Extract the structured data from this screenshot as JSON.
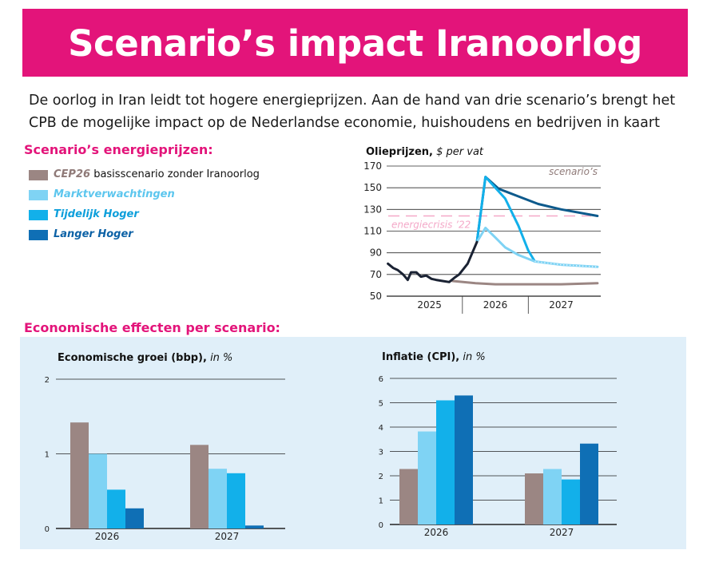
{
  "header": {
    "title": "Scenario’s impact Iranoorlog"
  },
  "intro": {
    "text": "De oorlog in Iran leidt tot hogere energieprijzen. Aan de hand van drie scenario’s brengt het CPB de mogelijke impact op de Nederlandse economie, huishoudens en bedrijven in kaart"
  },
  "legend": {
    "title": "Scenario’s energieprijzen:",
    "items": [
      {
        "name": "CEP26",
        "desc": "basisscenario zonder Iranoorlog",
        "color": "#9b8683",
        "name_color": "#8f7a78"
      },
      {
        "name": "Marktverwachtingen",
        "desc": "",
        "color": "#7fd3f4",
        "name_color": "#5cc6ee"
      },
      {
        "name": "Tijdelijk Hoger",
        "desc": "",
        "color": "#12b0ea",
        "name_color": "#0d9fdb"
      },
      {
        "name": "Langer Hoger",
        "desc": "",
        "color": "#0f6fb5",
        "name_color": "#0d62a6"
      }
    ]
  },
  "effects": {
    "title": "Economische effecten per scenario:"
  },
  "colors": {
    "accent": "#e3147a",
    "panel": "#e0eff9",
    "history": "#1a2233",
    "base": "#9b8683",
    "market": "#7fd3f4",
    "temporary": "#12b0ea",
    "longer": "#0f6fb5",
    "longer_line": "#0d5a8c",
    "crisis": "#f4a8c8"
  },
  "chart_data": [
    {
      "id": "oil",
      "type": "line",
      "title": "Olieprijzen,",
      "unit": "$ per vat",
      "xlabel": "",
      "ylabel": "",
      "ylim": [
        50,
        170
      ],
      "yticks": [
        50,
        70,
        90,
        110,
        130,
        150,
        170
      ],
      "xlim": [
        2024.35,
        2027.6
      ],
      "xticks": [
        {
          "label": "2025",
          "pos": 2025
        },
        {
          "label": "2026",
          "pos": 2026
        },
        {
          "label": "2027",
          "pos": 2027
        }
      ],
      "year_dividers": [
        2025.5,
        2026.5
      ],
      "grid": true,
      "annotations": {
        "scenarios": "scenario’s",
        "crisis": "energiecrisis ’22"
      },
      "crisis_level": 124,
      "series": [
        {
          "key": "base",
          "x": [
            2025.35,
            2025.7,
            2026.0,
            2026.5,
            2027.0,
            2027.55
          ],
          "y": [
            64,
            62,
            61,
            61,
            61,
            62
          ]
        },
        {
          "key": "history",
          "x": [
            2024.37,
            2024.45,
            2024.52,
            2024.6,
            2024.67,
            2024.72,
            2024.8,
            2024.87,
            2024.95,
            2025.03,
            2025.1,
            2025.2,
            2025.3,
            2025.38,
            2025.45,
            2025.58,
            2025.72
          ],
          "y": [
            80,
            76,
            74,
            70,
            65,
            72,
            72,
            68,
            69,
            66,
            65,
            64,
            63,
            67,
            70,
            80,
            100
          ]
        },
        {
          "key": "market",
          "x": [
            2025.72,
            2025.85,
            2026.0,
            2026.15,
            2026.35,
            2026.6,
            2027.0,
            2027.55
          ],
          "y": [
            100,
            113,
            104,
            95,
            88,
            82,
            79,
            77
          ]
        },
        {
          "key": "temporary",
          "x": [
            2025.72,
            2025.85,
            2026.15,
            2026.35,
            2026.5,
            2026.6
          ],
          "y": [
            100,
            160,
            140,
            115,
            92,
            82
          ]
        },
        {
          "key": "longer",
          "x": [
            2025.72,
            2025.85,
            2026.05,
            2026.35,
            2026.65,
            2027.0,
            2027.55
          ],
          "y": [
            100,
            160,
            149,
            142,
            135,
            130,
            124
          ]
        }
      ]
    },
    {
      "id": "gdp",
      "type": "bar",
      "title": "Economische groei (bbp),",
      "unit": "in %",
      "xlabel": "",
      "ylabel": "",
      "ylim": [
        0,
        2
      ],
      "yticks": [
        0,
        1,
        2
      ],
      "grid": true,
      "categories": [
        "2026",
        "2027"
      ],
      "series": [
        {
          "key": "base",
          "values": [
            1.42,
            1.12
          ]
        },
        {
          "key": "market",
          "values": [
            1.0,
            0.8
          ]
        },
        {
          "key": "temporary",
          "values": [
            0.52,
            0.74
          ]
        },
        {
          "key": "longer",
          "values": [
            0.27,
            0.04
          ]
        }
      ]
    },
    {
      "id": "cpi",
      "type": "bar",
      "title": "Inflatie (CPI),",
      "unit": "in %",
      "xlabel": "",
      "ylabel": "",
      "ylim": [
        0,
        6
      ],
      "yticks": [
        0,
        1,
        2,
        3,
        4,
        5,
        6
      ],
      "grid": true,
      "categories": [
        "2026",
        "2027"
      ],
      "series": [
        {
          "key": "base",
          "values": [
            2.28,
            2.1
          ]
        },
        {
          "key": "market",
          "values": [
            3.82,
            2.28
          ]
        },
        {
          "key": "temporary",
          "values": [
            5.1,
            1.85
          ]
        },
        {
          "key": "longer",
          "values": [
            5.3,
            3.32
          ]
        }
      ]
    }
  ]
}
